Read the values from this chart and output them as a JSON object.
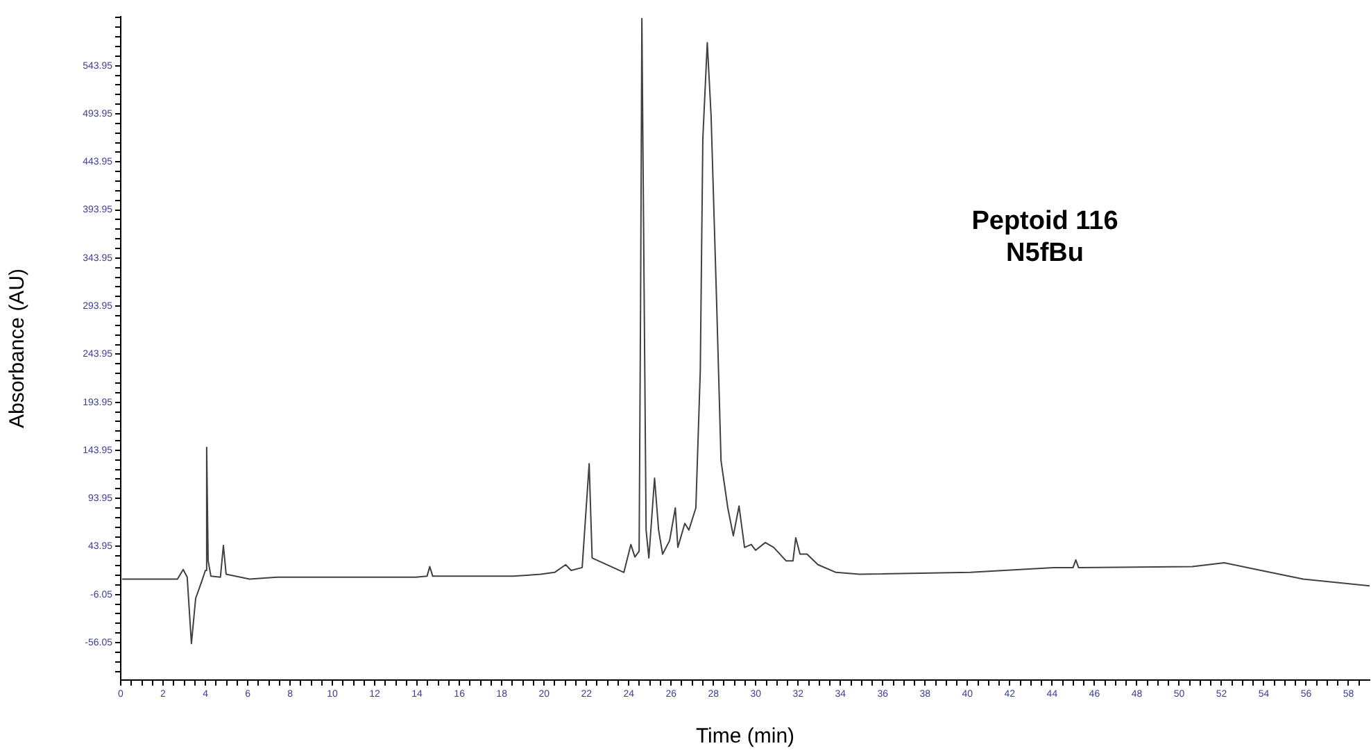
{
  "chart_data": {
    "type": "line",
    "xlabel": "Time (min)",
    "ylabel": "Absorbance (AU)",
    "annotations": [
      "Peptoid 116",
      "N5fBu"
    ],
    "xlim": [
      0,
      59
    ],
    "ylim": [
      -95,
      595
    ],
    "grid": false,
    "legend": false,
    "marker": "none",
    "xticks": [
      0,
      {
        "value": 0.5,
        "label": null
      },
      {
        "value": 1,
        "label": null
      },
      {
        "value": 1.5,
        "label": null
      },
      2,
      {
        "value": 2.5,
        "label": null
      },
      {
        "value": 3,
        "label": null
      },
      {
        "value": 3.5,
        "label": null
      },
      4,
      {
        "value": 4.5,
        "label": null
      },
      {
        "value": 5,
        "label": null
      },
      {
        "value": 5.5,
        "label": null
      },
      6,
      {
        "value": 6.5,
        "label": null
      },
      {
        "value": 7,
        "label": null
      },
      {
        "value": 7.5,
        "label": null
      },
      8,
      {
        "value": 8.5,
        "label": null
      },
      {
        "value": 9,
        "label": null
      },
      {
        "value": 9.5,
        "label": null
      },
      10,
      {
        "value": 10.5,
        "label": null
      },
      {
        "value": 11,
        "label": null
      },
      {
        "value": 11.5,
        "label": null
      },
      12,
      {
        "value": 12.5,
        "label": null
      },
      {
        "value": 13,
        "label": null
      },
      {
        "value": 13.5,
        "label": null
      },
      14,
      {
        "value": 14.5,
        "label": null
      },
      {
        "value": 15,
        "label": null
      },
      {
        "value": 15.5,
        "label": null
      },
      16,
      {
        "value": 16.5,
        "label": null
      },
      {
        "value": 17,
        "label": null
      },
      {
        "value": 17.5,
        "label": null
      },
      18,
      {
        "value": 18.5,
        "label": null
      },
      {
        "value": 19,
        "label": null
      },
      {
        "value": 19.5,
        "label": null
      },
      20,
      {
        "value": 20.5,
        "label": null
      },
      {
        "value": 21,
        "label": null
      },
      {
        "value": 21.5,
        "label": null
      },
      22,
      {
        "value": 22.5,
        "label": null
      },
      {
        "value": 23,
        "label": null
      },
      {
        "value": 23.5,
        "label": null
      },
      24,
      {
        "value": 24.5,
        "label": null
      },
      {
        "value": 25,
        "label": null
      },
      {
        "value": 25.5,
        "label": null
      },
      26,
      {
        "value": 26.5,
        "label": null
      },
      {
        "value": 27,
        "label": null
      },
      {
        "value": 27.5,
        "label": null
      },
      28,
      {
        "value": 28.5,
        "label": null
      },
      {
        "value": 29,
        "label": null
      },
      {
        "value": 29.5,
        "label": null
      },
      30,
      {
        "value": 30.5,
        "label": null
      },
      {
        "value": 31,
        "label": null
      },
      {
        "value": 31.5,
        "label": null
      },
      32,
      {
        "value": 32.5,
        "label": null
      },
      {
        "value": 33,
        "label": null
      },
      {
        "value": 33.5,
        "label": null
      },
      34,
      {
        "value": 34.5,
        "label": null
      },
      {
        "value": 35,
        "label": null
      },
      {
        "value": 35.5,
        "label": null
      },
      36,
      {
        "value": 36.5,
        "label": null
      },
      {
        "value": 37,
        "label": null
      },
      {
        "value": 37.5,
        "label": null
      },
      38,
      {
        "value": 38.5,
        "label": null
      },
      {
        "value": 39,
        "label": null
      },
      {
        "value": 39.5,
        "label": null
      },
      40,
      {
        "value": 40.5,
        "label": null
      },
      {
        "value": 41,
        "label": null
      },
      {
        "value": 41.5,
        "label": null
      },
      42,
      {
        "value": 42.5,
        "label": null
      },
      {
        "value": 43,
        "label": null
      },
      {
        "value": 43.5,
        "label": null
      },
      44,
      {
        "value": 44.5,
        "label": null
      },
      {
        "value": 45,
        "label": null
      },
      {
        "value": 45.5,
        "label": null
      },
      46,
      {
        "value": 46.5,
        "label": null
      },
      {
        "value": 47,
        "label": null
      },
      {
        "value": 47.5,
        "label": null
      },
      48,
      {
        "value": 48.5,
        "label": null
      },
      {
        "value": 49,
        "label": null
      },
      {
        "value": 49.5,
        "label": null
      },
      50,
      {
        "value": 50.5,
        "label": null
      },
      {
        "value": 51,
        "label": null
      },
      {
        "value": 51.5,
        "label": null
      },
      52,
      {
        "value": 52.5,
        "label": null
      },
      {
        "value": 53,
        "label": null
      },
      {
        "value": 53.5,
        "label": null
      },
      54,
      {
        "value": 54.5,
        "label": null
      },
      {
        "value": 55,
        "label": null
      },
      {
        "value": 55.5,
        "label": null
      },
      56,
      {
        "value": 56.5,
        "label": null
      },
      {
        "value": 57,
        "label": null
      },
      {
        "value": 57.5,
        "label": null
      },
      58,
      {
        "value": 58.5,
        "label": null
      }
    ],
    "yticks": [
      {
        "value": -86.05,
        "label": null
      },
      {
        "value": -76.05,
        "label": null
      },
      {
        "value": -66.05,
        "label": null
      },
      -56.05,
      {
        "value": -46.05,
        "label": null
      },
      {
        "value": -36.05,
        "label": null
      },
      {
        "value": -26.05,
        "label": null
      },
      {
        "value": -16.05,
        "label": null
      },
      -6.05,
      {
        "value": 3.95,
        "label": null
      },
      {
        "value": 13.95,
        "label": null
      },
      {
        "value": 23.95,
        "label": null
      },
      {
        "value": 33.95,
        "label": null
      },
      43.95,
      {
        "value": 53.95,
        "label": null
      },
      {
        "value": 63.95,
        "label": null
      },
      {
        "value": 73.95,
        "label": null
      },
      {
        "value": 83.95,
        "label": null
      },
      93.95,
      {
        "value": 103.95,
        "label": null
      },
      {
        "value": 113.95,
        "label": null
      },
      {
        "value": 123.95,
        "label": null
      },
      {
        "value": 133.95,
        "label": null
      },
      143.95,
      {
        "value": 153.95,
        "label": null
      },
      {
        "value": 163.95,
        "label": null
      },
      {
        "value": 173.95,
        "label": null
      },
      {
        "value": 183.95,
        "label": null
      },
      193.95,
      {
        "value": 203.95,
        "label": null
      },
      {
        "value": 213.95,
        "label": null
      },
      {
        "value": 223.95,
        "label": null
      },
      {
        "value": 233.95,
        "label": null
      },
      243.95,
      {
        "value": 253.95,
        "label": null
      },
      {
        "value": 263.95,
        "label": null
      },
      {
        "value": 273.95,
        "label": null
      },
      {
        "value": 283.95,
        "label": null
      },
      293.95,
      {
        "value": 303.95,
        "label": null
      },
      {
        "value": 313.95,
        "label": null
      },
      {
        "value": 323.95,
        "label": null
      },
      {
        "value": 333.95,
        "label": null
      },
      343.95,
      {
        "value": 353.95,
        "label": null
      },
      {
        "value": 363.95,
        "label": null
      },
      {
        "value": 373.95,
        "label": null
      },
      {
        "value": 383.95,
        "label": null
      },
      393.95,
      {
        "value": 403.95,
        "label": null
      },
      {
        "value": 413.95,
        "label": null
      },
      {
        "value": 423.95,
        "label": null
      },
      {
        "value": 433.95,
        "label": null
      },
      443.95,
      {
        "value": 453.95,
        "label": null
      },
      {
        "value": 463.95,
        "label": null
      },
      {
        "value": 473.95,
        "label": null
      },
      {
        "value": 483.95,
        "label": null
      },
      493.95,
      {
        "value": 503.95,
        "label": null
      },
      {
        "value": 513.95,
        "label": null
      },
      {
        "value": 523.95,
        "label": null
      },
      {
        "value": 533.95,
        "label": null
      },
      543.95,
      {
        "value": 553.95,
        "label": null
      },
      {
        "value": 563.95,
        "label": null
      },
      {
        "value": 573.95,
        "label": null
      },
      {
        "value": 583.95,
        "label": null
      },
      {
        "value": 593.95,
        "label": null
      }
    ],
    "series": [
      {
        "color": "#404040",
        "x": [
          0.06,
          2.68,
          2.95,
          3.14,
          3.34,
          3.54,
          3.8,
          4.0,
          4.06,
          4.13,
          4.26,
          4.71,
          4.85,
          4.98,
          6.09,
          7.39,
          13.95,
          14.47,
          14.6,
          14.74,
          18.53,
          19.84,
          20.5,
          21.02,
          21.28,
          21.8,
          22.13,
          22.27,
          23.77,
          24.1,
          24.29,
          24.49,
          24.56,
          24.62,
          24.82,
          24.95,
          25.22,
          25.41,
          25.6,
          25.93,
          26.2,
          26.32,
          26.65,
          26.84,
          27.17,
          27.38,
          27.5,
          27.71,
          27.89,
          28.15,
          28.36,
          28.68,
          28.94,
          29.21,
          29.47,
          29.79,
          29.99,
          30.45,
          30.85,
          31.43,
          31.76,
          31.89,
          32.09,
          32.42,
          32.94,
          33.79,
          34.9,
          40.14,
          44.07,
          44.99,
          45.12,
          45.25,
          50.62,
          52.13,
          53.23,
          55.86,
          59.0
        ],
        "values": [
          10,
          10,
          20,
          12,
          -57,
          -10,
          6,
          19,
          147,
          29,
          13,
          12,
          45,
          15,
          10,
          12,
          12,
          13,
          23,
          13,
          13,
          15,
          17,
          25,
          19,
          22,
          130,
          32,
          17,
          46,
          33,
          39,
          299,
          593,
          61,
          32,
          115,
          61,
          36,
          50,
          84,
          43,
          68,
          61,
          84,
          227,
          468,
          568,
          492,
          299,
          133,
          84,
          55,
          86,
          43,
          46,
          40,
          48,
          43,
          29,
          29,
          53,
          36,
          36,
          25,
          17,
          15,
          17,
          22,
          22,
          30,
          22,
          23,
          27,
          22,
          10,
          3
        ]
      }
    ]
  }
}
